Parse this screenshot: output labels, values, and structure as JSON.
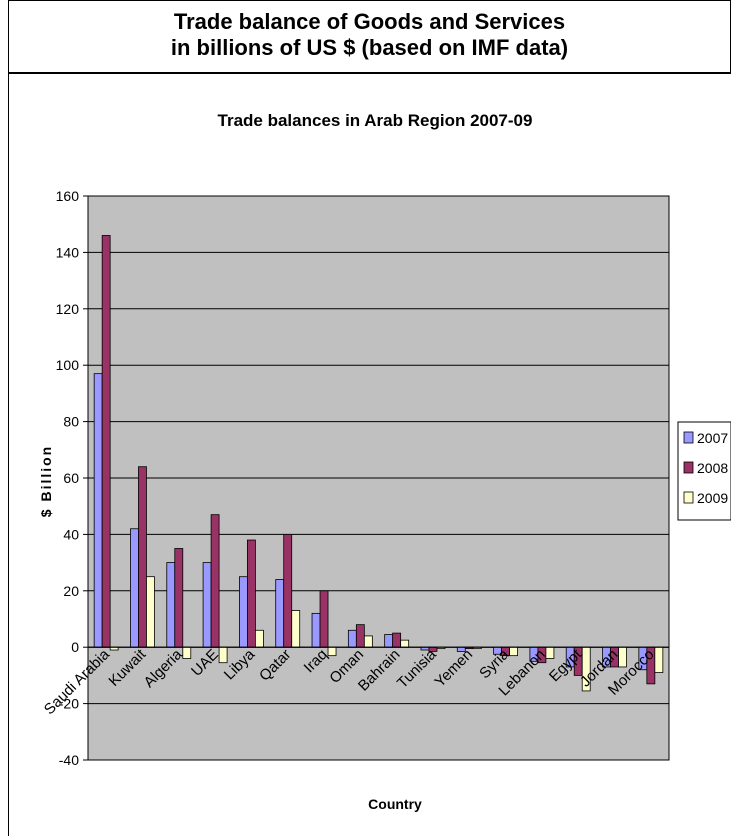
{
  "header": {
    "line1": "Trade balance of Goods and Services",
    "line2": "in billions of US $ (based on IMF data)"
  },
  "chart_data": {
    "type": "bar",
    "title": "Trade balances in Arab Region 2007-09",
    "xlabel": "Country",
    "ylabel": "$ Billion",
    "ylim": [
      -40,
      160
    ],
    "yticks": [
      -40,
      -20,
      0,
      20,
      40,
      60,
      80,
      100,
      120,
      140,
      160
    ],
    "grid": true,
    "legend_position": "right",
    "categories": [
      "Saudi Arabia",
      "Kuwait",
      "Algeria",
      "UAE",
      "Libya",
      "Qatar",
      "Iraq",
      "Oman",
      "Bahrain",
      "Tunisia",
      "Yemen",
      "Syria",
      "Lebanon",
      "Egypt",
      "Jordan",
      "Morocco"
    ],
    "series": [
      {
        "name": "2007",
        "color": "#9999ff",
        "values": [
          97,
          42,
          30,
          30,
          25,
          24,
          12,
          6,
          4.5,
          -1,
          -1.5,
          -2.5,
          -5,
          -7,
          -7,
          -8
        ]
      },
      {
        "name": "2008",
        "color": "#993366",
        "values": [
          146,
          64,
          35,
          47,
          38,
          40,
          20,
          8,
          5,
          -1.5,
          -0.5,
          -3,
          -5.5,
          -10,
          -7,
          -13
        ]
      },
      {
        "name": "2009",
        "color": "#ffffcc",
        "values": [
          -1,
          25,
          -4,
          -5.5,
          6,
          13,
          -3,
          4,
          2.5,
          -0.5,
          -0.5,
          -3,
          -4,
          -15.5,
          -7,
          -9
        ]
      }
    ]
  },
  "colors": {
    "plot_background": "#c0c0c0",
    "gridline": "#000000"
  }
}
